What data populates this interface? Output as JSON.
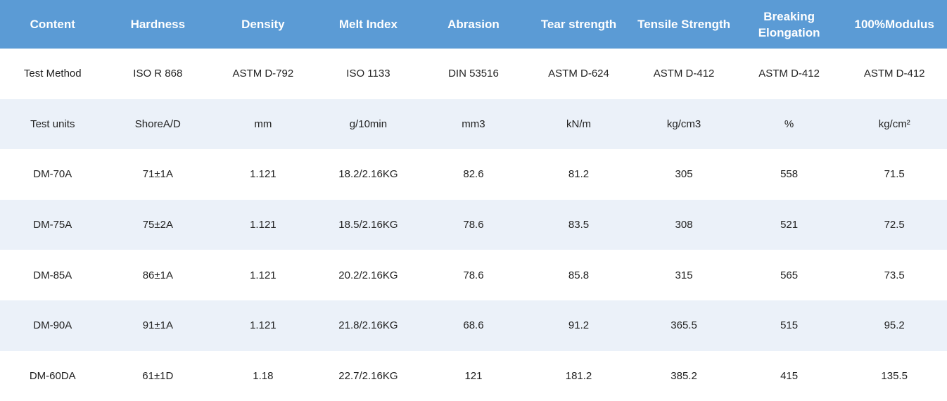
{
  "table": {
    "header": [
      "Content",
      "Hardness",
      "Density",
      "Melt Index",
      "Abrasion",
      "Tear strength",
      "Tensile Strength",
      "Breaking Elongation",
      "100%Modulus"
    ],
    "rows": [
      [
        "Test Method",
        "ISO R 868",
        "ASTM D-792",
        "ISO 1133",
        "DIN 53516",
        "ASTM D-624",
        "ASTM D-412",
        "ASTM D-412",
        "ASTM D-412"
      ],
      [
        "Test units",
        "ShoreA/D",
        "mm",
        "g/10min",
        "mm3",
        "kN/m",
        "kg/cm3",
        "%",
        "kg/cm²"
      ],
      [
        "DM-70A",
        "71±1A",
        "1.121",
        "18.2/2.16KG",
        "82.6",
        "81.2",
        "305",
        "558",
        "71.5"
      ],
      [
        "DM-75A",
        "75±2A",
        "1.121",
        "18.5/2.16KG",
        "78.6",
        "83.5",
        "308",
        "521",
        "72.5"
      ],
      [
        "DM-85A",
        "86±1A",
        "1.121",
        "20.2/2.16KG",
        "78.6",
        "85.8",
        "315",
        "565",
        "73.5"
      ],
      [
        "DM-90A",
        "91±1A",
        "1.121",
        "21.8/2.16KG",
        "68.6",
        "91.2",
        "365.5",
        "515",
        "95.2"
      ],
      [
        "DM-60DA",
        "61±1D",
        "1.18",
        "22.7/2.16KG",
        "121",
        "181.2",
        "385.2",
        "415",
        "135.5"
      ]
    ]
  }
}
